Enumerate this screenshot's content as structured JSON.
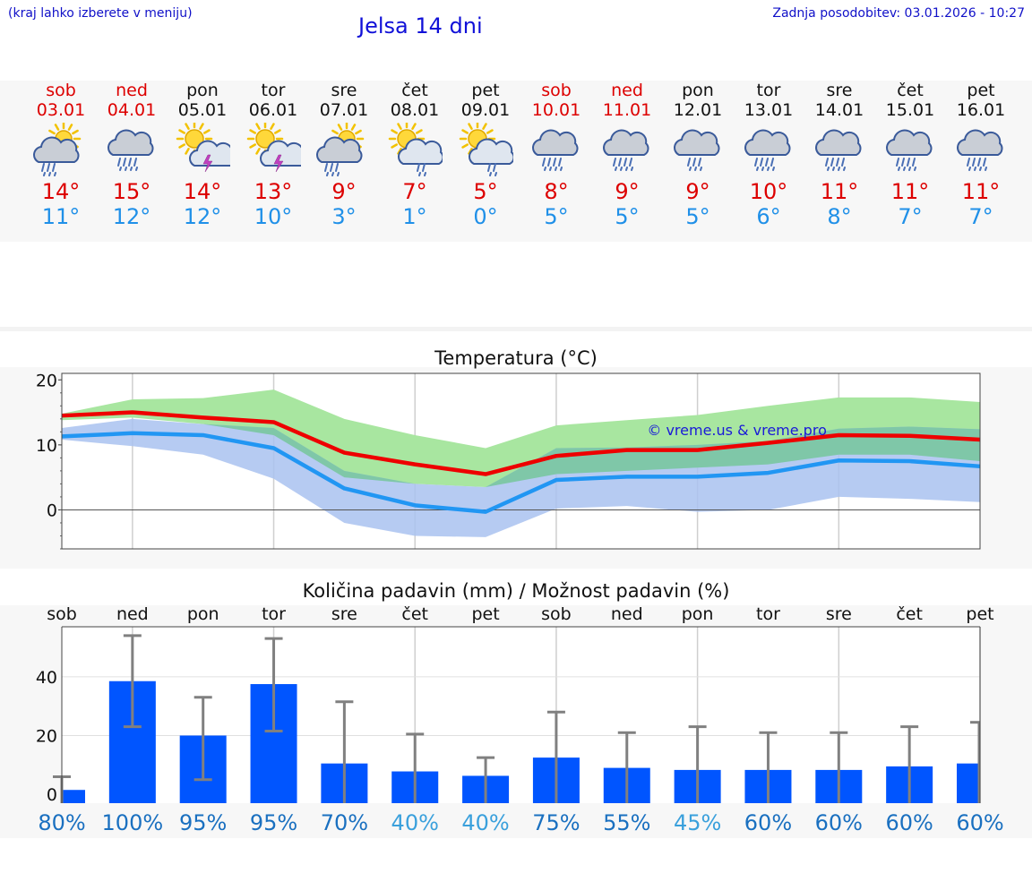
{
  "header": {
    "note": "(kraj lahko izberete v meniju)",
    "title": "Jelsa 14 dni",
    "updated": "Zadnja posodobitev: 03.01.2026 - 10:27"
  },
  "forecast": [
    {
      "day": "sob",
      "date": "03.01",
      "weekend": true,
      "icon": "sun-cloud-rain-icon",
      "tmax": "14°",
      "tmin": "11°"
    },
    {
      "day": "ned",
      "date": "04.01",
      "weekend": true,
      "icon": "cloud-rain-icon",
      "tmax": "15°",
      "tmin": "12°"
    },
    {
      "day": "pon",
      "date": "05.01",
      "weekend": false,
      "icon": "sun-cloud-thunder-icon",
      "tmax": "14°",
      "tmin": "12°"
    },
    {
      "day": "tor",
      "date": "06.01",
      "weekend": false,
      "icon": "sun-cloud-thunder-icon",
      "tmax": "13°",
      "tmin": "10°"
    },
    {
      "day": "sre",
      "date": "07.01",
      "weekend": false,
      "icon": "sun-cloud-rain-icon",
      "tmax": "9°",
      "tmin": "3°"
    },
    {
      "day": "čet",
      "date": "08.01",
      "weekend": false,
      "icon": "sun-cloud-drizzle-icon",
      "tmax": "7°",
      "tmin": "1°"
    },
    {
      "day": "pet",
      "date": "09.01",
      "weekend": false,
      "icon": "sun-cloud-drizzle-icon",
      "tmax": "5°",
      "tmin": "0°"
    },
    {
      "day": "sob",
      "date": "10.01",
      "weekend": true,
      "icon": "cloud-rain-icon",
      "tmax": "8°",
      "tmin": "5°"
    },
    {
      "day": "ned",
      "date": "11.01",
      "weekend": true,
      "icon": "cloud-rain-icon",
      "tmax": "9°",
      "tmin": "5°"
    },
    {
      "day": "pon",
      "date": "12.01",
      "weekend": false,
      "icon": "cloud-drizzle-icon",
      "tmax": "9°",
      "tmin": "5°"
    },
    {
      "day": "tor",
      "date": "13.01",
      "weekend": false,
      "icon": "cloud-rain-icon",
      "tmax": "10°",
      "tmin": "6°"
    },
    {
      "day": "sre",
      "date": "14.01",
      "weekend": false,
      "icon": "cloud-rain-icon",
      "tmax": "11°",
      "tmin": "8°"
    },
    {
      "day": "čet",
      "date": "15.01",
      "weekend": false,
      "icon": "cloud-rain-icon",
      "tmax": "11°",
      "tmin": "7°"
    },
    {
      "day": "pet",
      "date": "16.01",
      "weekend": false,
      "icon": "cloud-rain-icon",
      "tmax": "11°",
      "tmin": "7°"
    }
  ],
  "colors": {
    "max_line": "#ee0000",
    "min_line": "#2196f3",
    "green_band": "#a8e6a0",
    "blue_band": "#a9c2f0",
    "overlap_band": "#7fc7a8",
    "bar": "#0055ff",
    "whisker": "#808080",
    "text_red": "#dd0000",
    "text_blue": "#2090e8"
  },
  "chart_data": [
    {
      "type": "line",
      "title": "Temperatura (°C)",
      "watermark": "© vreme.us & vreme.pro",
      "categories": [
        "03.01",
        "04.01",
        "05.01",
        "06.01",
        "07.01",
        "08.01",
        "09.01",
        "10.01",
        "11.01",
        "12.01",
        "13.01",
        "14.01",
        "15.01",
        "16.01"
      ],
      "ylim": [
        -6,
        21
      ],
      "yticks": [
        0,
        10,
        20
      ],
      "ytick_labels": [
        "0",
        "10",
        "20"
      ],
      "series": [
        {
          "name": "max",
          "values": [
            14.5,
            15,
            14.2,
            13.5,
            8.8,
            7,
            5.5,
            8.3,
            9.2,
            9.2,
            10.3,
            11.5,
            11.4,
            10.8
          ],
          "band": [
            [
              13.8,
              14.8
            ],
            [
              14.2,
              17
            ],
            [
              13.2,
              17.2
            ],
            [
              11.5,
              18.5
            ],
            [
              5,
              14
            ],
            [
              4,
              11.5
            ],
            [
              3.5,
              9.5
            ],
            [
              5.5,
              13
            ],
            [
              6,
              13.8
            ],
            [
              6.5,
              14.6
            ],
            [
              7,
              16
            ],
            [
              8.5,
              17.3
            ],
            [
              8.5,
              17.3
            ],
            [
              7.5,
              16.6
            ]
          ]
        },
        {
          "name": "min",
          "values": [
            11.3,
            11.8,
            11.5,
            9.5,
            3.3,
            0.7,
            -0.3,
            4.6,
            5.1,
            5.1,
            5.7,
            7.6,
            7.5,
            6.7
          ],
          "band": [
            [
              10.8,
              12.6
            ],
            [
              9.8,
              14
            ],
            [
              8.5,
              13.2
            ],
            [
              4.8,
              12.6
            ],
            [
              -2,
              6
            ],
            [
              -4,
              4
            ],
            [
              -4.2,
              3.5
            ],
            [
              0.2,
              9.5
            ],
            [
              0.6,
              9.6
            ],
            [
              -0.3,
              10
            ],
            [
              0,
              10.6
            ],
            [
              2,
              12.5
            ],
            [
              1.7,
              12.8
            ],
            [
              1.2,
              12.4
            ]
          ]
        }
      ]
    },
    {
      "type": "bar",
      "title": "Količina padavin (mm) / Možnost padavin (%)",
      "categories": [
        "sob",
        "ned",
        "pon",
        "tor",
        "sre",
        "čet",
        "pet",
        "sob",
        "ned",
        "pon",
        "tor",
        "sre",
        "čet",
        "pet"
      ],
      "values": [
        1.5,
        38.5,
        20,
        37.5,
        10.5,
        7.8,
        6.3,
        12.5,
        9,
        8.3,
        8.3,
        8.3,
        9.5,
        10.5
      ],
      "error_high": [
        6,
        54,
        33,
        53,
        31.5,
        20.5,
        12.5,
        28,
        21,
        23,
        21,
        21,
        23,
        24.5
      ],
      "error_low": [
        0,
        23,
        5,
        21.5,
        0,
        0,
        0,
        0,
        0,
        0,
        0,
        0,
        0,
        0
      ],
      "ylim": [
        -3,
        57
      ],
      "yticks": [
        0,
        20,
        40
      ],
      "ytick_labels": [
        "0",
        "20",
        "40"
      ],
      "probability": [
        "80%",
        "100%",
        "95%",
        "95%",
        "70%",
        "40%",
        "40%",
        "75%",
        "55%",
        "45%",
        "60%",
        "60%",
        "60%",
        "60%"
      ]
    }
  ]
}
